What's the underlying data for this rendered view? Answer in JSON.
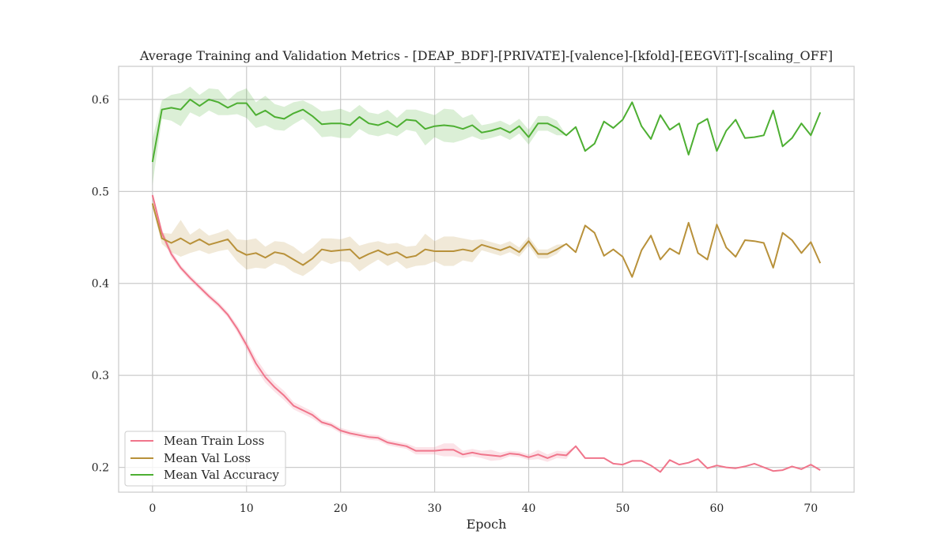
{
  "chart_data": {
    "type": "line",
    "title": "Average Training and Validation Metrics - [DEAP_BDF]-[PRIVATE]-[valence]-[kfold]-[EEGViT]-[scaling_OFF]",
    "xlabel": "Epoch",
    "ylabel": "",
    "xlim": [
      -3.6,
      74.6
    ],
    "ylim": [
      0.173,
      0.636
    ],
    "xticks": [
      0,
      10,
      20,
      30,
      40,
      50,
      60,
      70
    ],
    "yticks": [
      0.2,
      0.3,
      0.4,
      0.5,
      0.6
    ],
    "ytick_labels": [
      "0.2",
      "0.3",
      "0.4",
      "0.5",
      "0.6"
    ],
    "grid": true,
    "legend_position": "lower-left",
    "x": [
      0,
      1,
      2,
      3,
      4,
      5,
      6,
      7,
      8,
      9,
      10,
      11,
      12,
      13,
      14,
      15,
      16,
      17,
      18,
      19,
      20,
      21,
      22,
      23,
      24,
      25,
      26,
      27,
      28,
      29,
      30,
      31,
      32,
      33,
      34,
      35,
      36,
      37,
      38,
      39,
      40,
      41,
      42,
      43,
      44,
      45,
      46,
      47,
      48,
      49,
      50,
      51,
      52,
      53,
      54,
      55,
      56,
      57,
      58,
      59,
      60,
      61,
      62,
      63,
      64,
      65,
      66,
      67,
      68,
      69,
      70,
      71
    ],
    "series": [
      {
        "name": "Mean Train Loss",
        "color": "#f0758b",
        "values": [
          0.496,
          0.455,
          0.432,
          0.417,
          0.406,
          0.396,
          0.386,
          0.377,
          0.366,
          0.351,
          0.333,
          0.313,
          0.298,
          0.287,
          0.278,
          0.267,
          0.262,
          0.257,
          0.249,
          0.246,
          0.24,
          0.237,
          0.235,
          0.233,
          0.232,
          0.227,
          0.225,
          0.223,
          0.218,
          0.218,
          0.218,
          0.219,
          0.219,
          0.214,
          0.216,
          0.214,
          0.213,
          0.212,
          0.215,
          0.214,
          0.211,
          0.214,
          0.21,
          0.214,
          0.213,
          0.223,
          0.21,
          0.21,
          0.21,
          0.204,
          0.203,
          0.207,
          0.207,
          0.202,
          0.195,
          0.208,
          0.203,
          0.205,
          0.209,
          0.199,
          0.202,
          0.2,
          0.199,
          0.201,
          0.204,
          0.2,
          0.196,
          0.197,
          0.201,
          0.198,
          0.203,
          0.197
        ],
        "band": [
          0.002,
          0.004,
          0.004,
          0.003,
          0.003,
          0.003,
          0.003,
          0.003,
          0.003,
          0.004,
          0.005,
          0.006,
          0.006,
          0.005,
          0.005,
          0.004,
          0.004,
          0.004,
          0.003,
          0.003,
          0.003,
          0.003,
          0.003,
          0.003,
          0.003,
          0.003,
          0.003,
          0.003,
          0.004,
          0.004,
          0.004,
          0.007,
          0.007,
          0.004,
          0.004,
          0.004,
          0.006,
          0.004,
          0.003,
          0.003,
          0.003,
          0.005,
          0.004,
          0.004,
          0.004,
          0,
          0,
          0,
          0,
          0,
          0,
          0,
          0,
          0,
          0,
          0,
          0,
          0,
          0,
          0,
          0,
          0,
          0,
          0,
          0,
          0,
          0,
          0,
          0,
          0,
          0,
          0
        ]
      },
      {
        "name": "Mean Val Loss",
        "color": "#b8913a",
        "values": [
          0.487,
          0.449,
          0.444,
          0.449,
          0.443,
          0.448,
          0.442,
          0.445,
          0.448,
          0.436,
          0.431,
          0.433,
          0.428,
          0.434,
          0.432,
          0.426,
          0.42,
          0.427,
          0.437,
          0.435,
          0.436,
          0.437,
          0.427,
          0.432,
          0.436,
          0.431,
          0.434,
          0.428,
          0.43,
          0.437,
          0.435,
          0.435,
          0.435,
          0.437,
          0.435,
          0.442,
          0.439,
          0.436,
          0.44,
          0.434,
          0.446,
          0.432,
          0.432,
          0.437,
          0.443,
          0.434,
          0.463,
          0.455,
          0.43,
          0.437,
          0.429,
          0.407,
          0.436,
          0.452,
          0.426,
          0.438,
          0.432,
          0.466,
          0.433,
          0.426,
          0.464,
          0.439,
          0.429,
          0.447,
          0.446,
          0.444,
          0.417,
          0.455,
          0.447,
          0.433,
          0.445,
          0.422
        ],
        "band": [
          0.004,
          0.006,
          0.01,
          0.02,
          0.01,
          0.012,
          0.01,
          0.01,
          0.011,
          0.012,
          0.016,
          0.016,
          0.012,
          0.012,
          0.013,
          0.014,
          0.012,
          0.012,
          0.012,
          0.014,
          0.012,
          0.014,
          0.014,
          0.012,
          0.01,
          0.012,
          0.01,
          0.012,
          0.011,
          0.017,
          0.011,
          0.016,
          0.016,
          0.012,
          0.012,
          0.006,
          0.006,
          0.006,
          0.006,
          0.005,
          0.005,
          0.005,
          0.005,
          0.005,
          0,
          0,
          0,
          0,
          0,
          0,
          0,
          0,
          0,
          0,
          0,
          0,
          0,
          0,
          0,
          0,
          0,
          0,
          0,
          0,
          0,
          0,
          0,
          0,
          0,
          0,
          0,
          0
        ]
      },
      {
        "name": "Mean Val Accuracy",
        "color": "#4daf32",
        "values": [
          0.532,
          0.589,
          0.591,
          0.589,
          0.6,
          0.593,
          0.6,
          0.597,
          0.591,
          0.596,
          0.596,
          0.583,
          0.588,
          0.581,
          0.579,
          0.585,
          0.589,
          0.582,
          0.573,
          0.574,
          0.574,
          0.572,
          0.581,
          0.574,
          0.572,
          0.576,
          0.57,
          0.578,
          0.577,
          0.568,
          0.571,
          0.572,
          0.571,
          0.568,
          0.572,
          0.564,
          0.566,
          0.569,
          0.564,
          0.571,
          0.559,
          0.574,
          0.574,
          0.569,
          0.561,
          0.57,
          0.544,
          0.552,
          0.576,
          0.569,
          0.578,
          0.597,
          0.571,
          0.557,
          0.583,
          0.567,
          0.574,
          0.54,
          0.573,
          0.579,
          0.544,
          0.566,
          0.578,
          0.558,
          0.559,
          0.561,
          0.588,
          0.549,
          0.558,
          0.574,
          0.561,
          0.586
        ],
        "band": [
          0.025,
          0.01,
          0.014,
          0.018,
          0.014,
          0.012,
          0.012,
          0.014,
          0.008,
          0.012,
          0.016,
          0.014,
          0.016,
          0.014,
          0.013,
          0.012,
          0.01,
          0.012,
          0.014,
          0.014,
          0.016,
          0.014,
          0.013,
          0.012,
          0.012,
          0.013,
          0.01,
          0.011,
          0.012,
          0.018,
          0.012,
          0.018,
          0.018,
          0.012,
          0.012,
          0.008,
          0.008,
          0.008,
          0.008,
          0.008,
          0.008,
          0.008,
          0.008,
          0.008,
          0,
          0,
          0,
          0,
          0,
          0,
          0,
          0,
          0,
          0,
          0,
          0,
          0,
          0,
          0,
          0,
          0,
          0,
          0,
          0,
          0,
          0,
          0,
          0,
          0,
          0,
          0,
          0
        ]
      }
    ]
  }
}
